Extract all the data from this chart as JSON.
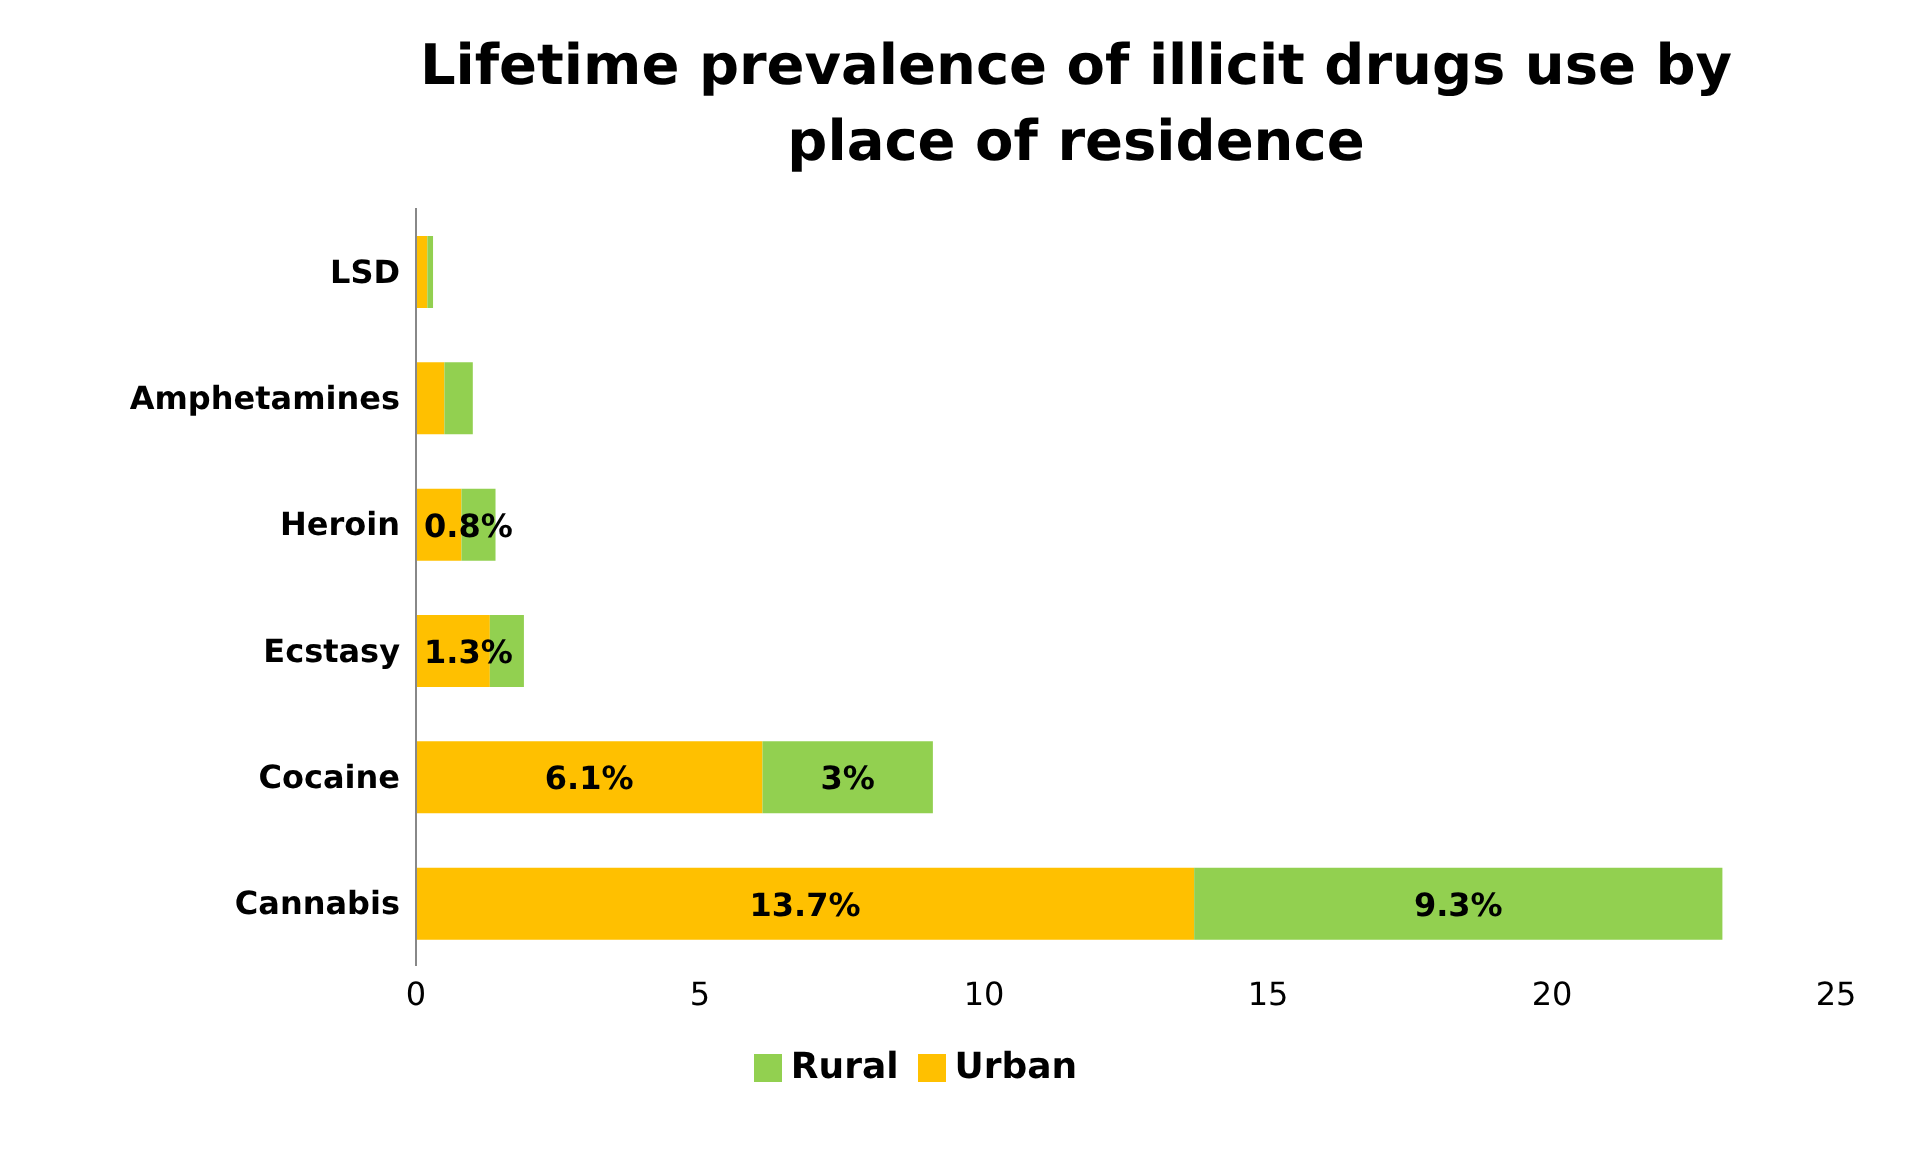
{
  "chart_data": {
    "type": "bar",
    "orientation": "horizontal",
    "stacked": true,
    "title": "Lifetime prevalence of illicit drugs use by place of residence",
    "categories": [
      "LSD",
      "Amphetamines",
      "Heroin",
      "Ecstasy",
      "Cocaine",
      "Cannabis"
    ],
    "series": [
      {
        "name": "Urban",
        "color": "#ffc000",
        "values": [
          0.2,
          0.5,
          0.8,
          1.3,
          6.1,
          13.7
        ],
        "value_labels": [
          null,
          null,
          "0.8%",
          "1.3%",
          "6.1%",
          "13.7%"
        ]
      },
      {
        "name": "Rural",
        "color": "#92d050",
        "values": [
          0.1,
          0.5,
          0.6,
          0.6,
          3,
          9.3
        ],
        "value_labels": [
          null,
          null,
          null,
          null,
          "3%",
          "9.3%"
        ]
      }
    ],
    "xlim": [
      0,
      25
    ],
    "xticks": [
      0,
      5,
      10,
      15,
      20,
      25
    ],
    "grid": false,
    "legend": "bottom"
  }
}
